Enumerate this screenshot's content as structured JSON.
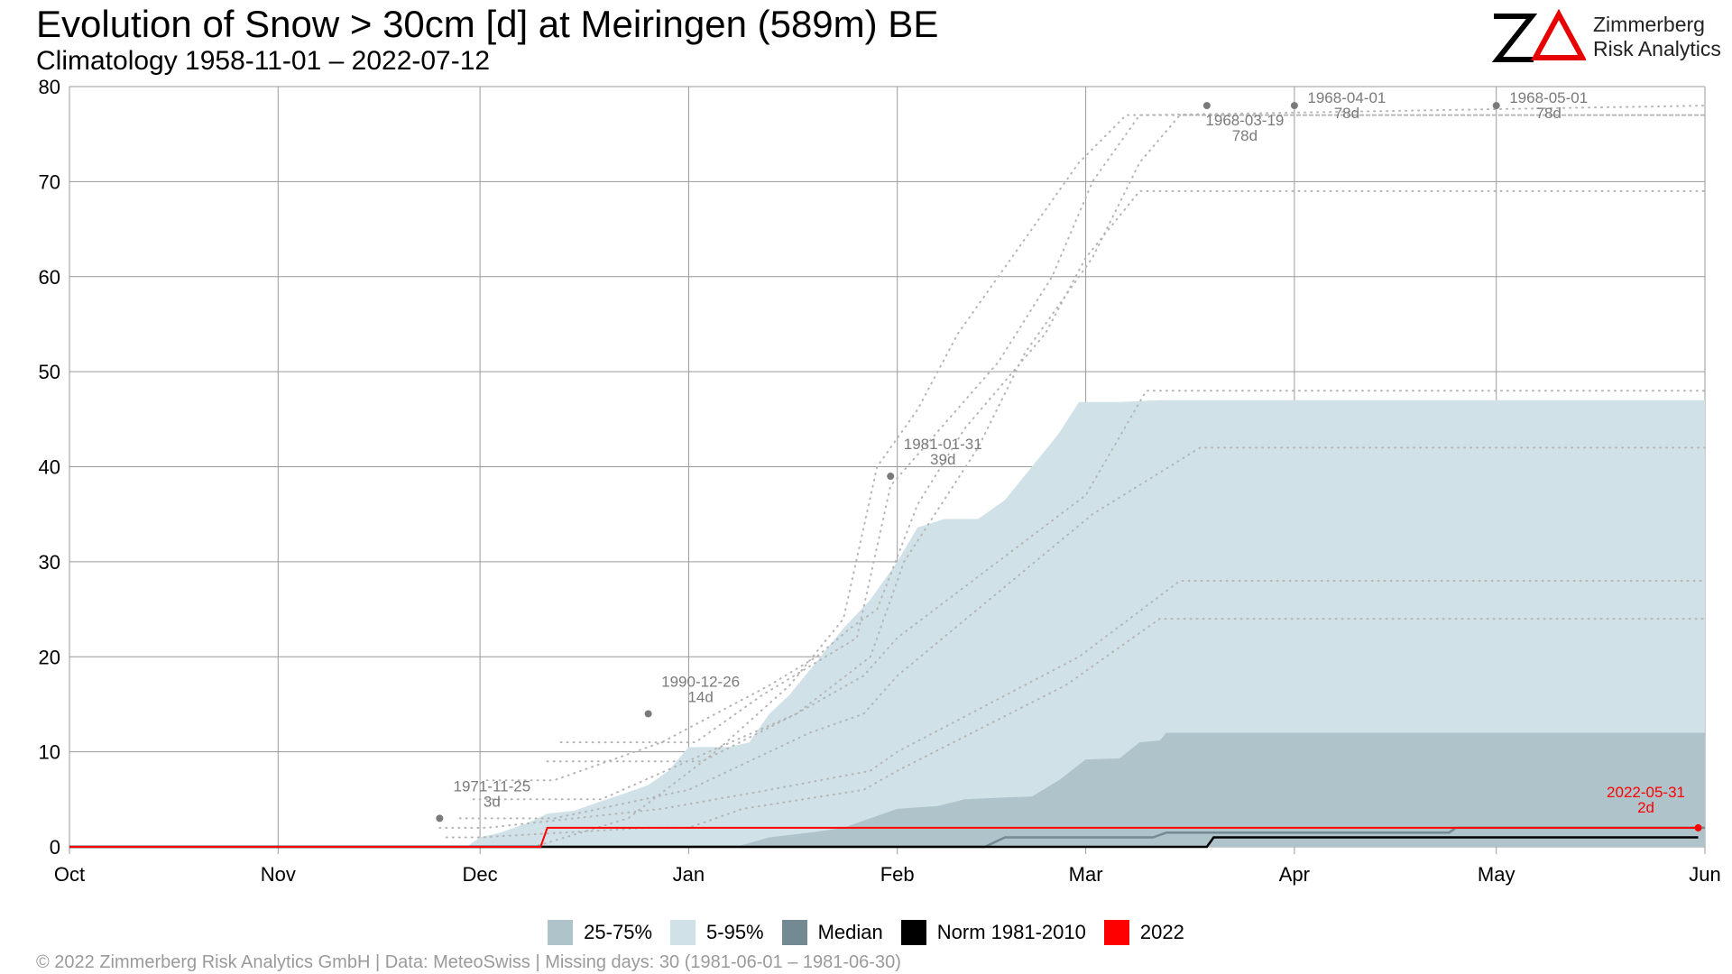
{
  "title": "Evolution of Snow > 30cm [d] at Meiringen (589m) BE",
  "subtitle": "Climatology 1958-11-01 – 2022-07-12",
  "logo": {
    "line1": "Zimmerberg",
    "line2": "Risk Analytics",
    "accent_color": "#e60000"
  },
  "footer": "©  2022 Zimmerberg Risk Analytics GmbH | Data: MeteoSwiss | Missing days: 30 (1981-06-01 – 1981-06-30)",
  "legend": [
    {
      "label": "25-75%",
      "color": "#afc3ca"
    },
    {
      "label": "5-95%",
      "color": "#d0e2e8"
    },
    {
      "label": "Median",
      "color": "#738a93"
    },
    {
      "label": "Norm 1981-2010",
      "color": "#000000"
    },
    {
      "label": "2022",
      "color": "#ff0000"
    }
  ],
  "chart_data": {
    "type": "area",
    "y_unit": "days",
    "x_start": "Oct 1",
    "x_end": "Jun 1",
    "xticks": [
      {
        "label": "Oct",
        "day": 0
      },
      {
        "label": "Nov",
        "day": 31
      },
      {
        "label": "Dec",
        "day": 61
      },
      {
        "label": "Jan",
        "day": 92
      },
      {
        "label": "Feb",
        "day": 123
      },
      {
        "label": "Mar",
        "day": 151
      },
      {
        "label": "Apr",
        "day": 182
      },
      {
        "label": "May",
        "day": 212
      },
      {
        "label": "Jun",
        "day": 243
      }
    ],
    "ylim": [
      0,
      80
    ],
    "yticks": [
      0,
      10,
      20,
      30,
      40,
      50,
      60,
      70,
      80
    ],
    "grid": true,
    "legend_position": "bottom",
    "band_5_95": {
      "color": "#d0e2e8",
      "upper": [
        [
          0,
          0
        ],
        [
          59,
          0
        ],
        [
          61,
          1
        ],
        [
          64,
          1.5
        ],
        [
          68,
          2.5
        ],
        [
          71,
          3.5
        ],
        [
          75,
          3.8
        ],
        [
          79,
          4.8
        ],
        [
          82,
          5.5
        ],
        [
          86,
          6.5
        ],
        [
          89,
          8
        ],
        [
          92,
          10.5
        ],
        [
          98,
          10.5
        ],
        [
          101,
          11
        ],
        [
          104,
          14
        ],
        [
          107,
          16
        ],
        [
          111,
          19.5
        ],
        [
          115,
          23
        ],
        [
          119,
          26
        ],
        [
          123,
          30
        ],
        [
          126,
          33.6
        ],
        [
          130,
          34.5
        ],
        [
          135,
          34.5
        ],
        [
          139,
          36.5
        ],
        [
          143,
          40
        ],
        [
          147,
          43.5
        ],
        [
          150,
          46.8
        ],
        [
          156,
          46.8
        ],
        [
          162,
          47
        ],
        [
          243,
          47
        ]
      ],
      "lower": [
        [
          0,
          0
        ],
        [
          243,
          0
        ]
      ]
    },
    "band_25_75": {
      "color": "#afc3ca",
      "upper": [
        [
          0,
          0
        ],
        [
          99,
          0
        ],
        [
          104,
          1
        ],
        [
          110,
          1.5
        ],
        [
          115,
          2
        ],
        [
          119,
          3
        ],
        [
          123,
          4
        ],
        [
          129,
          4.3
        ],
        [
          133,
          5
        ],
        [
          139,
          5.2
        ],
        [
          143,
          5.3
        ],
        [
          147,
          7
        ],
        [
          151,
          9.2
        ],
        [
          156,
          9.3
        ],
        [
          159,
          11
        ],
        [
          162,
          11.2
        ],
        [
          163,
          12
        ],
        [
          243,
          12
        ]
      ],
      "lower": [
        [
          0,
          0
        ],
        [
          243,
          0
        ]
      ]
    },
    "median": {
      "color": "#738a93",
      "values": [
        [
          0,
          0
        ],
        [
          136,
          0
        ],
        [
          139,
          1
        ],
        [
          161,
          1
        ],
        [
          163,
          1.5
        ],
        [
          205,
          1.5
        ],
        [
          206,
          2
        ],
        [
          243,
          2
        ]
      ]
    },
    "norm_1981_2010": {
      "color": "#000000",
      "values": [
        [
          0,
          0
        ],
        [
          169,
          0
        ],
        [
          170,
          1
        ],
        [
          242,
          1
        ]
      ]
    },
    "year_2022": {
      "color": "#ff0000",
      "values": [
        [
          0,
          0
        ],
        [
          70,
          0
        ],
        [
          71,
          2
        ],
        [
          242,
          2
        ]
      ]
    },
    "record_traces": {
      "color": "#b5b5b5",
      "lines": [
        [
          [
            56,
            1
          ],
          [
            61,
            1
          ],
          [
            86,
            2
          ],
          [
            92,
            2
          ],
          [
            100,
            4
          ],
          [
            118,
            6
          ],
          [
            123,
            8
          ],
          [
            148,
            17
          ],
          [
            162,
            24
          ],
          [
            243,
            24
          ]
        ],
        [
          [
            55,
            2
          ],
          [
            62,
            2
          ],
          [
            88,
            4
          ],
          [
            104,
            6
          ],
          [
            119,
            8
          ],
          [
            123,
            10
          ],
          [
            150,
            20
          ],
          [
            165,
            28
          ],
          [
            243,
            28
          ]
        ],
        [
          [
            58,
            3
          ],
          [
            72,
            3
          ],
          [
            92,
            6
          ],
          [
            110,
            12
          ],
          [
            118,
            14
          ],
          [
            123,
            18
          ],
          [
            152,
            35
          ],
          [
            168,
            42
          ],
          [
            243,
            42
          ]
        ],
        [
          [
            60,
            5
          ],
          [
            79,
            5
          ],
          [
            95,
            10
          ],
          [
            108,
            14
          ],
          [
            118,
            18
          ],
          [
            123,
            22
          ],
          [
            151,
            37
          ],
          [
            160,
            48
          ],
          [
            243,
            48
          ]
        ],
        [
          [
            62,
            7
          ],
          [
            72,
            7
          ],
          [
            88,
            11
          ],
          [
            104,
            17
          ],
          [
            111,
            20
          ],
          [
            116,
            23
          ],
          [
            120,
            25
          ],
          [
            126,
            36
          ],
          [
            133,
            44
          ],
          [
            145,
            54
          ],
          [
            151,
            62
          ],
          [
            159,
            69
          ],
          [
            243,
            69
          ]
        ],
        [
          [
            71,
            9
          ],
          [
            94,
            9
          ],
          [
            108,
            14
          ],
          [
            119,
            20
          ],
          [
            124,
            30
          ],
          [
            135,
            42
          ],
          [
            142,
            52
          ],
          [
            152,
            62
          ],
          [
            159,
            72
          ],
          [
            165,
            77
          ],
          [
            243,
            77
          ]
        ],
        [
          [
            73,
            11
          ],
          [
            93,
            11
          ],
          [
            103,
            16
          ],
          [
            117,
            22
          ],
          [
            122,
            38
          ],
          [
            138,
            51
          ],
          [
            146,
            60
          ],
          [
            152,
            70
          ],
          [
            159,
            77
          ],
          [
            243,
            77
          ]
        ],
        [
          [
            65,
            0
          ],
          [
            69,
            0
          ],
          [
            83,
            3
          ],
          [
            96,
            10
          ],
          [
            107,
            17
          ],
          [
            115,
            24
          ],
          [
            120,
            40
          ],
          [
            126,
            46
          ],
          [
            132,
            54
          ],
          [
            141,
            63
          ],
          [
            150,
            72
          ],
          [
            157,
            77
          ],
          [
            160,
            77
          ],
          [
            243,
            78
          ]
        ]
      ]
    },
    "annotations": [
      {
        "date": "1971-11-25",
        "value_label": "3d",
        "day": 55,
        "value": 3,
        "color": "#7a7a7a"
      },
      {
        "date": "1990-12-26",
        "value_label": "14d",
        "day": 86,
        "value": 14,
        "color": "#7a7a7a"
      },
      {
        "date": "1981-01-31",
        "value_label": "39d",
        "day": 122,
        "value": 39,
        "color": "#7a7a7a"
      },
      {
        "date": "1968-03-19",
        "value_label": "78d",
        "day": 169,
        "value": 78,
        "color": "#7a7a7a"
      },
      {
        "date": "1968-04-01",
        "value_label": "78d",
        "day": 182,
        "value": 78,
        "color": "#7a7a7a"
      },
      {
        "date": "1968-05-01",
        "value_label": "78d",
        "day": 212,
        "value": 78,
        "color": "#7a7a7a"
      },
      {
        "date": "2022-05-31",
        "value_label": "2d",
        "day": 242,
        "value": 2,
        "color": "#ff0000"
      }
    ]
  }
}
